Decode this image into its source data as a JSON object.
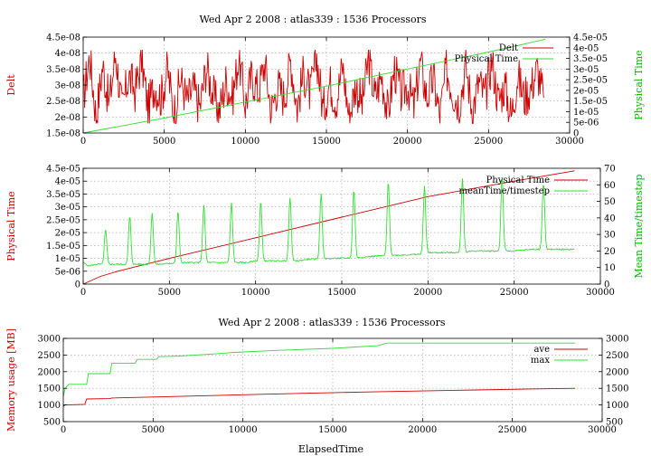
{
  "colors": {
    "red": "#cc0000",
    "green": "#33dd33"
  },
  "chart_data": [
    {
      "type": "line",
      "title": "Wed Apr 2 2008 : atlas339 : 1536 Processors",
      "xlabel": "",
      "ylabel": "Delt",
      "y2label": "Physical Time",
      "xlim": [
        0,
        30000
      ],
      "ylim": [
        1.5e-08,
        4.5e-08
      ],
      "y2lim": [
        0,
        4.5e-05
      ],
      "grid": true,
      "legend": "top-right",
      "x_ticks": [
        "0",
        "5000",
        "10000",
        "15000",
        "20000",
        "25000",
        "30000"
      ],
      "y_ticks": [
        "1.5e-08",
        "2e-08",
        "2.5e-08",
        "3e-08",
        "3.5e-08",
        "4e-08",
        "4.5e-08"
      ],
      "y2_ticks": [
        "0",
        "5e-06",
        "1e-05",
        "1.5e-05",
        "2e-05",
        "2.5e-05",
        "3e-05",
        "3.5e-05",
        "4e-05",
        "4.5e-05"
      ],
      "series": [
        {
          "name": "Delt",
          "axis": "y",
          "color": "red",
          "x": [
            0,
            400,
            800,
            1200,
            1600,
            2000,
            2400,
            2800,
            3200,
            3600,
            4000,
            4400,
            4800,
            5200,
            5600,
            6000,
            6400,
            6800,
            7200,
            7600,
            8000,
            8400,
            8800,
            9200,
            9600,
            10000,
            10400,
            10800,
            11200,
            11600,
            12000,
            12400,
            12800,
            13200,
            13600,
            14000,
            14400,
            14800,
            15200,
            15600,
            16000,
            16400,
            16800,
            17200,
            17600,
            18000,
            18400,
            18800,
            19200,
            19600,
            20000,
            20400,
            20800,
            21200,
            21600,
            22000,
            22400,
            22800,
            23200,
            23600,
            24000,
            24400,
            24800,
            25200,
            25600,
            26000,
            26400,
            26800,
            27200,
            27600,
            28000,
            28400
          ],
          "values": [
            2.6e-08,
            3.9e-08,
            2e-08,
            3.6e-08,
            2.4e-08,
            4e-08,
            2.2e-08,
            3.3e-08,
            2.8e-08,
            3.8e-08,
            2.3e-08,
            3e-08,
            2.6e-08,
            3.5e-08,
            2.1e-08,
            3.2e-08,
            2.5e-08,
            2.9e-08,
            2.3e-08,
            3.6e-08,
            2.7e-08,
            2.2e-08,
            3.1e-08,
            2.6e-08,
            3.9e-08,
            2.4e-08,
            3.3e-08,
            2.8e-08,
            3.7e-08,
            2.2e-08,
            3e-08,
            2.6e-08,
            3.8e-08,
            2.3e-08,
            3.4e-08,
            2.7e-08,
            3.9e-08,
            2.2e-08,
            3.1e-08,
            2.5e-08,
            3.6e-08,
            2e-08,
            3e-08,
            2.4e-08,
            3.8e-08,
            2.6e-08,
            3.3e-08,
            2.1e-08,
            3.5e-08,
            2.7e-08,
            3e-08,
            2.3e-08,
            3.7e-08,
            2.6e-08,
            3.2e-08,
            2e-08,
            3.5e-08,
            2.8e-08,
            2.4e-08,
            3.6e-08,
            2.2e-08,
            3.1e-08,
            2.6e-08,
            3.8e-08,
            2.5e-08,
            3e-08,
            2e-08,
            3.3e-08,
            2.6e-08,
            2.9e-08,
            3.5e-08,
            2.6e-08
          ]
        },
        {
          "name": "Physical Time",
          "axis": "y2",
          "color": "green",
          "x": [
            0,
            5000,
            10000,
            15000,
            20000,
            25000,
            28500
          ],
          "values": [
            0,
            7e-06,
            1.45e-05,
            2.2e-05,
            3e-05,
            3.8e-05,
            4.4e-05
          ]
        }
      ]
    },
    {
      "type": "line",
      "title": "",
      "xlabel": "",
      "ylabel": "Physical Time",
      "y2label": "Mean Time/timestep",
      "xlim": [
        0,
        30000
      ],
      "ylim": [
        0,
        4.5e-05
      ],
      "y2lim": [
        0,
        70
      ],
      "grid": true,
      "legend": "top-right",
      "x_ticks": [
        "0",
        "5000",
        "10000",
        "15000",
        "20000",
        "25000",
        "30000"
      ],
      "y_ticks": [
        "0",
        "5e-06",
        "1e-05",
        "1.5e-05",
        "2e-05",
        "2.5e-05",
        "3e-05",
        "3.5e-05",
        "4e-05",
        "4.5e-05"
      ],
      "y2_ticks": [
        "0",
        "10",
        "20",
        "30",
        "40",
        "50",
        "60",
        "70"
      ],
      "series": [
        {
          "name": "Physical Time",
          "axis": "y",
          "color": "red",
          "x": [
            0,
            1000,
            2000,
            5000,
            10000,
            15000,
            20000,
            25000,
            28500
          ],
          "values": [
            0,
            3e-06,
            5e-06,
            1e-05,
            1.8e-05,
            2.6e-05,
            3.4e-05,
            4e-05,
            4.4e-05
          ],
          "spikes": []
        },
        {
          "name": "meanTime/timestep",
          "axis": "y2",
          "color": "green",
          "baseline": [
            [
              0,
              13
            ],
            [
              300,
              11
            ],
            [
              800,
              12
            ],
            [
              4500,
              12
            ],
            [
              5500,
              13
            ],
            [
              9500,
              13
            ],
            [
              10000,
              14
            ],
            [
              12500,
              14
            ],
            [
              13000,
              15
            ],
            [
              16000,
              16
            ],
            [
              17000,
              17
            ],
            [
              19500,
              18
            ],
            [
              20000,
              19
            ],
            [
              22000,
              19
            ],
            [
              22500,
              20
            ],
            [
              25000,
              20
            ],
            [
              26000,
              21
            ],
            [
              28500,
              21
            ]
          ],
          "spikes": [
            [
              1300,
              33
            ],
            [
              2700,
              41
            ],
            [
              4000,
              43
            ],
            [
              5500,
              44
            ],
            [
              7000,
              48
            ],
            [
              8600,
              49
            ],
            [
              10300,
              50
            ],
            [
              12000,
              52
            ],
            [
              13800,
              55
            ],
            [
              15700,
              57
            ],
            [
              17700,
              62
            ],
            [
              19800,
              59
            ],
            [
              22000,
              64
            ],
            [
              24300,
              65
            ],
            [
              26700,
              61
            ]
          ]
        }
      ]
    },
    {
      "type": "line",
      "title": "Wed Apr 2 2008 : atlas339 : 1536 Processors",
      "xlabel": "ElapsedTime",
      "ylabel": "Memory usage [MB]",
      "y2label": "",
      "xlim": [
        0,
        30000
      ],
      "ylim": [
        500,
        3000
      ],
      "y2lim": [
        500,
        3000
      ],
      "grid": true,
      "legend": "top-right",
      "x_ticks": [
        "0",
        "5000",
        "10000",
        "15000",
        "20000",
        "25000",
        "30000"
      ],
      "y_ticks": [
        "500",
        "1000",
        "1500",
        "2000",
        "2500",
        "3000"
      ],
      "y2_ticks": [
        "500",
        "1000",
        "1500",
        "2000",
        "2500",
        "3000"
      ],
      "series": [
        {
          "name": "ave",
          "axis": "y",
          "color": "red",
          "x": [
            0,
            100,
            1200,
            1300,
            2600,
            2700,
            5000,
            8000,
            11000,
            14000,
            17000,
            20000,
            23000,
            26000,
            28500
          ],
          "values": [
            960,
            1000,
            1020,
            1180,
            1190,
            1210,
            1240,
            1280,
            1320,
            1360,
            1390,
            1420,
            1450,
            1480,
            1500
          ]
        },
        {
          "name": "max",
          "axis": "y",
          "color": "green",
          "x": [
            0,
            100,
            300,
            1300,
            1400,
            2600,
            2700,
            4000,
            4100,
            5200,
            5300,
            6500,
            8000,
            9500,
            12000,
            15000,
            17500,
            18000,
            28500
          ],
          "values": [
            1250,
            1500,
            1620,
            1620,
            1940,
            1940,
            2250,
            2250,
            2370,
            2370,
            2450,
            2470,
            2520,
            2580,
            2640,
            2700,
            2780,
            2860,
            2860
          ]
        }
      ]
    }
  ]
}
